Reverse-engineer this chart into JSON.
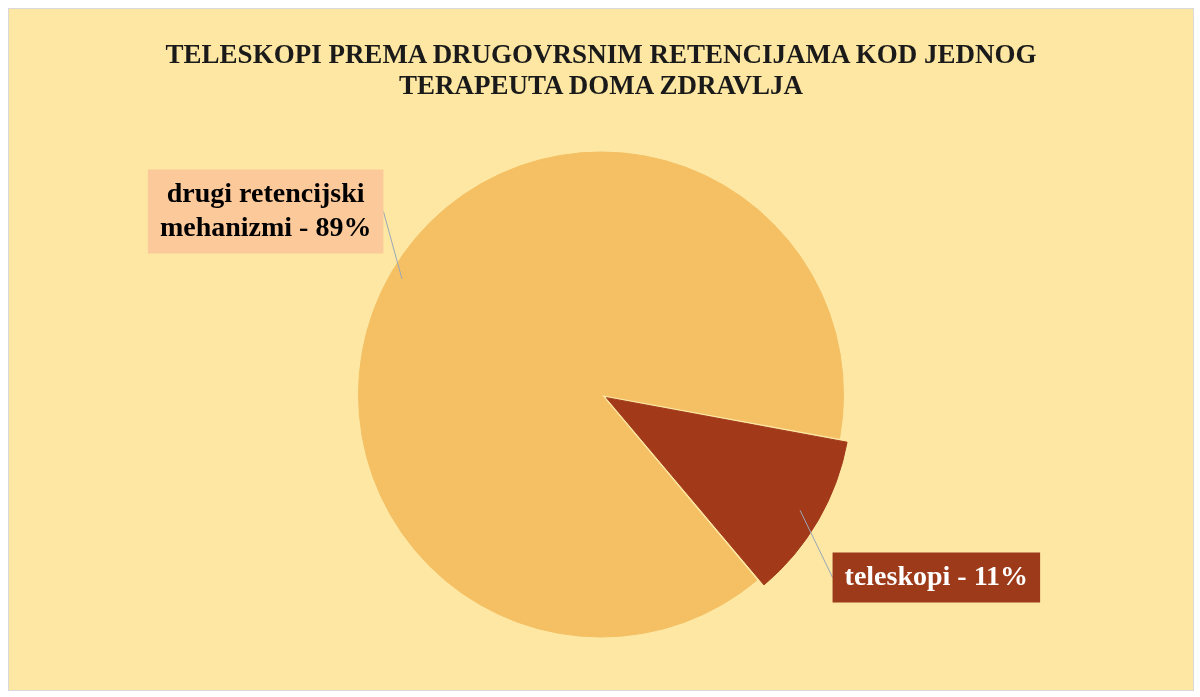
{
  "chart_data": {
    "type": "pie",
    "title": "TELESKOPI PREMA DRUGOVRSNIM RETENCIJAMA KOD JEDNOG TERAPEUTA DOMA ZDRAVLJA",
    "categories": [
      "drugi retencijski mehanizmi - 89%",
      "teleskopi - 11%"
    ],
    "values": [
      89,
      11
    ],
    "colors": [
      "#f4c063",
      "#a23a1a"
    ],
    "legend": false
  }
}
